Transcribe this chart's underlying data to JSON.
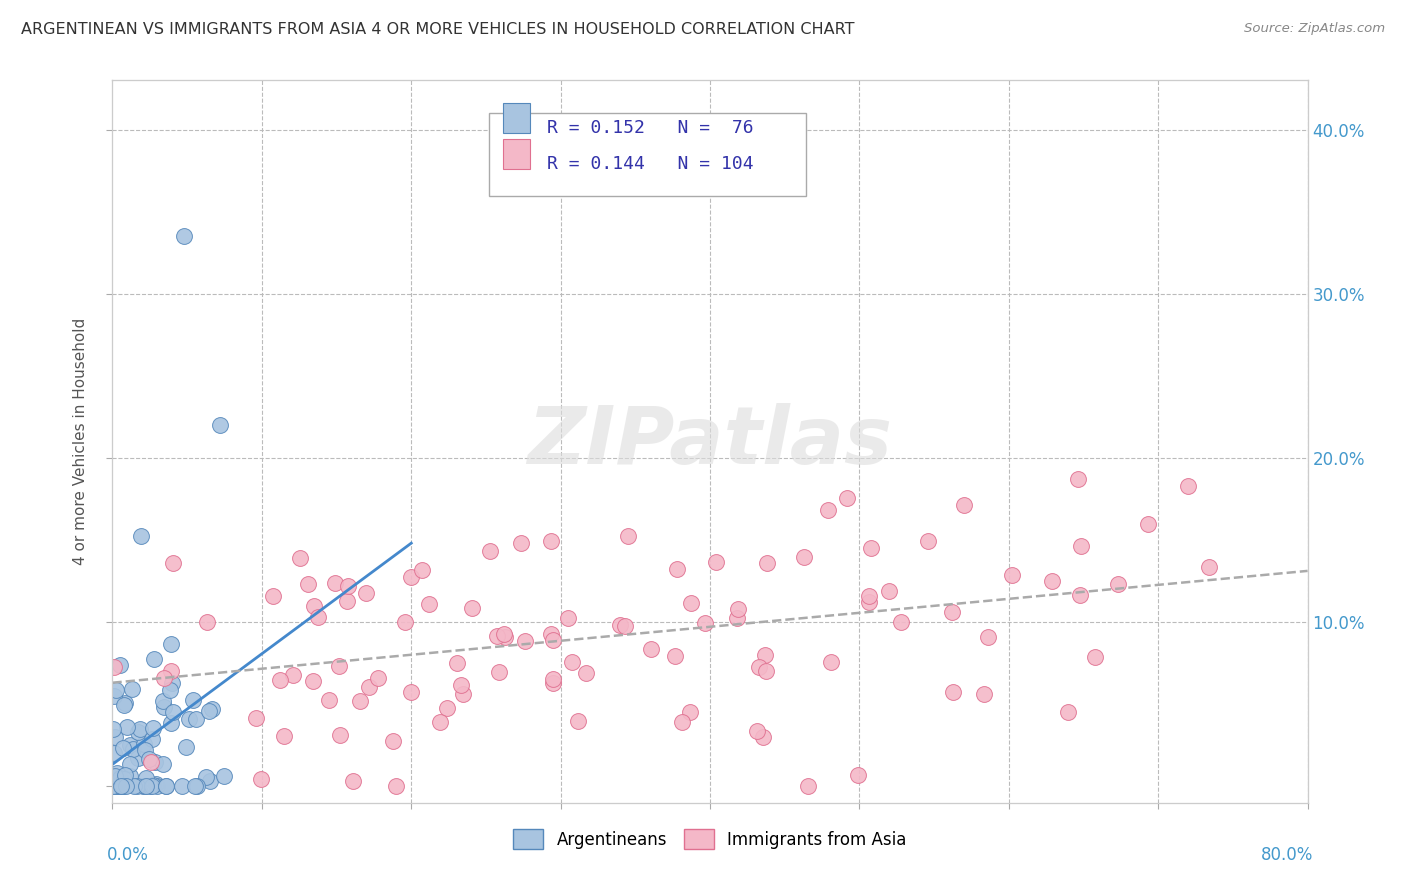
{
  "title": "ARGENTINEAN VS IMMIGRANTS FROM ASIA 4 OR MORE VEHICLES IN HOUSEHOLD CORRELATION CHART",
  "source": "Source: ZipAtlas.com",
  "ylabel": "4 or more Vehicles in Household",
  "xlim": [
    0,
    0.8
  ],
  "ylim": [
    -0.01,
    0.43
  ],
  "ytick_vals": [
    0.0,
    0.1,
    0.2,
    0.3,
    0.4
  ],
  "ytick_labels": [
    "",
    "10.0%",
    "20.0%",
    "30.0%",
    "40.0%"
  ],
  "xtick_vals": [
    0.0,
    0.1,
    0.2,
    0.3,
    0.4,
    0.5,
    0.6,
    0.7,
    0.8
  ],
  "legend_r1": "R = 0.152",
  "legend_n1": "N =  76",
  "legend_r2": "R = 0.144",
  "legend_n2": "N = 104",
  "color_arg": "#a8c4e0",
  "color_asia": "#f4b8c8",
  "color_arg_edge": "#5588bb",
  "color_asia_edge": "#e07090",
  "color_trend_arg": "#4488cc",
  "color_trend_asia": "#aaaaaa",
  "watermark_color": "#dddddd",
  "background_color": "#ffffff",
  "grid_color": "#bbbbbb",
  "title_color": "#333333",
  "source_color": "#888888",
  "axis_label_color": "#4499cc",
  "ylabel_color": "#555555",
  "legend_text_color": "#3333aa"
}
